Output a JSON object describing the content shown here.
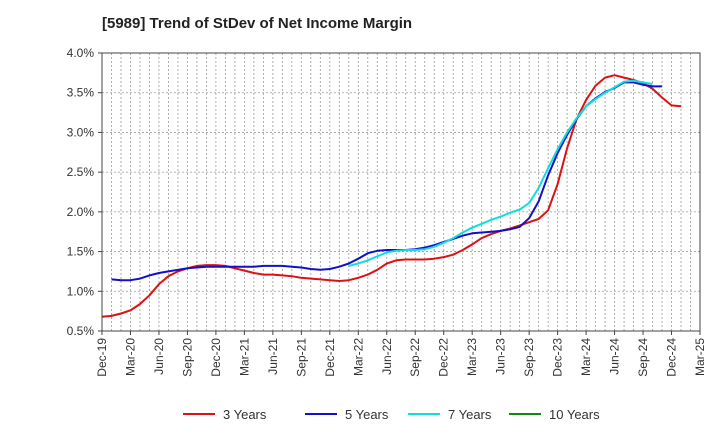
{
  "chart_data": {
    "type": "line",
    "title": "[5989]  Trend of StDev of Net Income Margin",
    "xlabel": "",
    "ylabel": "",
    "ylim": [
      0.5,
      4.0
    ],
    "y_ticks": [
      "0.5%",
      "1.0%",
      "1.5%",
      "2.0%",
      "2.5%",
      "3.0%",
      "3.5%",
      "4.0%"
    ],
    "y_tick_values": [
      0.5,
      1.0,
      1.5,
      2.0,
      2.5,
      3.0,
      3.5,
      4.0
    ],
    "x_ticks": [
      "Dec-19",
      "Mar-20",
      "Jun-20",
      "Sep-20",
      "Dec-20",
      "Mar-21",
      "Jun-21",
      "Sep-21",
      "Dec-21",
      "Mar-22",
      "Jun-22",
      "Sep-22",
      "Dec-22",
      "Mar-23",
      "Jun-23",
      "Sep-23",
      "Dec-23",
      "Mar-24",
      "Jun-24",
      "Sep-24",
      "Dec-24",
      "Mar-25"
    ],
    "grid": true,
    "legend_placement": "bottom",
    "series": [
      {
        "name": "3 Years",
        "color": "#dd1111",
        "x_start_index": 0,
        "values": [
          0.68,
          0.69,
          0.72,
          0.76,
          0.84,
          0.95,
          1.09,
          1.19,
          1.25,
          1.29,
          1.32,
          1.33,
          1.33,
          1.32,
          1.29,
          1.26,
          1.23,
          1.21,
          1.21,
          1.2,
          1.19,
          1.17,
          1.16,
          1.15,
          1.14,
          1.13,
          1.14,
          1.17,
          1.21,
          1.27,
          1.35,
          1.39,
          1.4,
          1.4,
          1.4,
          1.41,
          1.43,
          1.46,
          1.52,
          1.59,
          1.67,
          1.72,
          1.76,
          1.79,
          1.83,
          1.87,
          1.91,
          2.02,
          2.35,
          2.8,
          3.17,
          3.41,
          3.59,
          3.69,
          3.72,
          3.69,
          3.66,
          3.62,
          3.55,
          3.44,
          3.34,
          3.33
        ]
      },
      {
        "name": "5 Years",
        "color": "#1111cc",
        "x_start_index": 1,
        "values": [
          1.15,
          1.14,
          1.14,
          1.16,
          1.2,
          1.23,
          1.25,
          1.27,
          1.29,
          1.3,
          1.31,
          1.31,
          1.31,
          1.31,
          1.31,
          1.31,
          1.32,
          1.32,
          1.32,
          1.31,
          1.3,
          1.28,
          1.27,
          1.28,
          1.31,
          1.35,
          1.41,
          1.48,
          1.51,
          1.52,
          1.52,
          1.52,
          1.53,
          1.55,
          1.58,
          1.62,
          1.66,
          1.7,
          1.73,
          1.74,
          1.75,
          1.76,
          1.78,
          1.81,
          1.92,
          2.13,
          2.46,
          2.74,
          2.97,
          3.17,
          3.33,
          3.43,
          3.51,
          3.56,
          3.63,
          3.63,
          3.6,
          3.58,
          3.58
        ]
      },
      {
        "name": "7 Years",
        "color": "#11dddd",
        "x_start_index": 26,
        "values": [
          1.32,
          1.35,
          1.39,
          1.44,
          1.49,
          1.51,
          1.52,
          1.52,
          1.53,
          1.56,
          1.61,
          1.67,
          1.74,
          1.8,
          1.85,
          1.9,
          1.94,
          1.99,
          2.03,
          2.11,
          2.3,
          2.55,
          2.79,
          3.0,
          3.18,
          3.33,
          3.42,
          3.5,
          3.57,
          3.64,
          3.65,
          3.63,
          3.61
        ]
      },
      {
        "name": "10 Years",
        "color": "#118811",
        "x_start_index": 0,
        "values": []
      }
    ]
  }
}
